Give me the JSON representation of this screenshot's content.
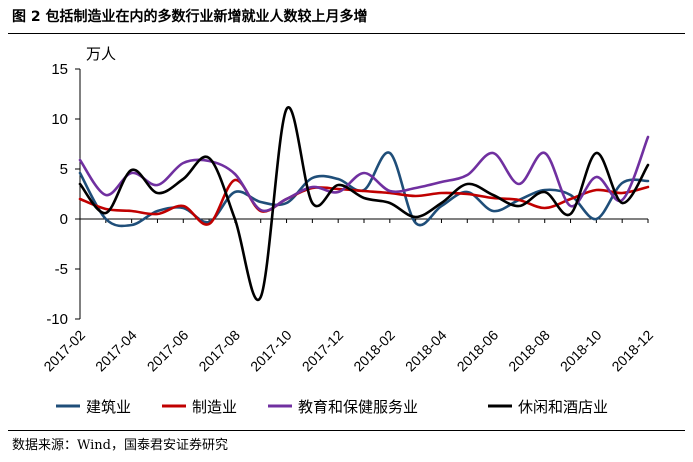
{
  "figure_title": "图 2  包括制造业在内的多数行业新增就业人数较上月多增",
  "source": "数据来源：Wind，国泰君安证券研究",
  "colors": {
    "建筑业": "#1f4e79",
    "制造业": "#c00000",
    "教育和保健服务业": "#7030a0",
    "休闲和酒店业": "#000000"
  },
  "chart_data": {
    "type": "line",
    "title": "",
    "xlabel": "",
    "ylabel": "万人",
    "ylim": [
      -10,
      15
    ],
    "yticks": [
      -10,
      -5,
      0,
      5,
      10,
      15
    ],
    "categories": [
      "2017-02",
      "2017-03",
      "2017-04",
      "2017-05",
      "2017-06",
      "2017-07",
      "2017-08",
      "2017-09",
      "2017-10",
      "2017-11",
      "2017-12",
      "2018-01",
      "2018-02",
      "2018-03",
      "2018-04",
      "2018-05",
      "2018-06",
      "2018-07",
      "2018-08",
      "2018-09",
      "2018-10",
      "2018-11",
      "2018-12"
    ],
    "tick_labels": [
      "2017-02",
      "2017-04",
      "2017-06",
      "2017-08",
      "2017-10",
      "2017-12",
      "2018-02",
      "2018-04",
      "2018-06",
      "2018-08",
      "2018-10",
      "2018-12"
    ],
    "legend_position": "bottom",
    "grid": false,
    "series": [
      {
        "name": "建筑业",
        "values": [
          4.6,
          0.0,
          -0.6,
          0.8,
          1.1,
          -0.3,
          2.7,
          1.7,
          1.6,
          4.1,
          4.0,
          2.9,
          6.6,
          -0.4,
          1.3,
          2.7,
          0.8,
          1.9,
          2.9,
          2.4,
          0.0,
          3.6,
          3.8
        ]
      },
      {
        "name": "制造业",
        "values": [
          2.0,
          1.0,
          0.8,
          0.5,
          1.3,
          -0.5,
          3.9,
          0.8,
          2.0,
          3.1,
          3.0,
          2.8,
          2.6,
          2.3,
          2.6,
          2.5,
          2.1,
          1.9,
          1.1,
          2.0,
          2.9,
          2.6,
          3.2
        ]
      },
      {
        "name": "教育和保健服务业",
        "values": [
          5.9,
          2.4,
          4.6,
          3.4,
          5.6,
          5.8,
          4.5,
          0.9,
          2.0,
          3.2,
          2.7,
          4.6,
          2.8,
          3.1,
          3.7,
          4.4,
          6.6,
          3.5,
          6.6,
          1.3,
          4.2,
          1.9,
          8.2
        ]
      },
      {
        "name": "休闲和酒店业",
        "values": [
          3.5,
          0.6,
          4.9,
          2.6,
          4.0,
          6.1,
          0.0,
          -7.8,
          11.0,
          1.6,
          3.4,
          2.1,
          1.6,
          0.2,
          1.6,
          3.5,
          2.4,
          1.3,
          2.7,
          0.5,
          6.6,
          1.6,
          5.4
        ]
      }
    ]
  }
}
